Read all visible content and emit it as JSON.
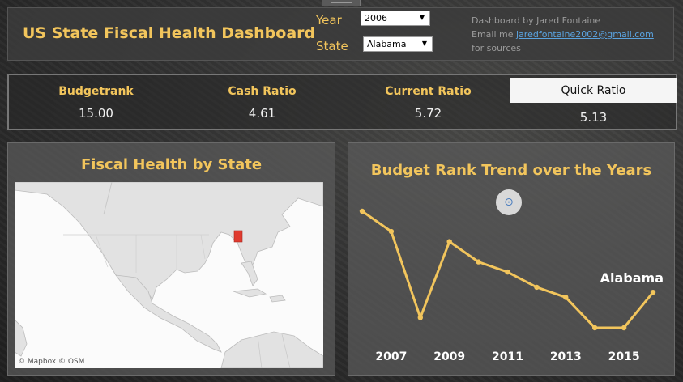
{
  "header": {
    "title": "US State Fiscal Health Dashboard",
    "year_label": "Year",
    "year_value": "2006",
    "state_label": "State",
    "state_value": "Alabama",
    "credit_line1": "Dashboard by Jared Fontaine",
    "credit_prefix": "Email me ",
    "credit_email": "jaredfontaine2002@gmail.com",
    "credit_line3": "for sources"
  },
  "kpis": [
    {
      "label": "Budgetrank",
      "value": "15.00"
    },
    {
      "label": "Cash Ratio",
      "value": "4.61"
    },
    {
      "label": "Current Ratio",
      "value": "5.72"
    },
    {
      "label": "Quick Ratio",
      "value": "5.13",
      "selected": true
    }
  ],
  "map_panel": {
    "title": "Fiscal Health by State",
    "attribution": "© Mapbox  © OSM",
    "highlighted_state": "Alabama",
    "highlight_color": "#e03a2f"
  },
  "chart_panel": {
    "title": "Budget Rank Trend over the Years",
    "focus_icon": "focus-icon"
  },
  "chart_data": {
    "type": "line",
    "title": "Budget Rank Trend over the Years",
    "x": [
      2006,
      2007,
      2008,
      2009,
      2010,
      2011,
      2012,
      2013,
      2014,
      2015,
      2016
    ],
    "series": [
      {
        "name": "Alabama",
        "values": [
          15,
          19,
          36,
          21,
          25,
          27,
          30,
          32,
          38,
          38,
          31
        ]
      }
    ],
    "tick_labels": [
      "2007",
      "2009",
      "2011",
      "2013",
      "2015"
    ],
    "line_color": "#f2c55c",
    "grid": false
  },
  "colors": {
    "accent": "#f2c55c",
    "link": "#5aa3e0"
  }
}
